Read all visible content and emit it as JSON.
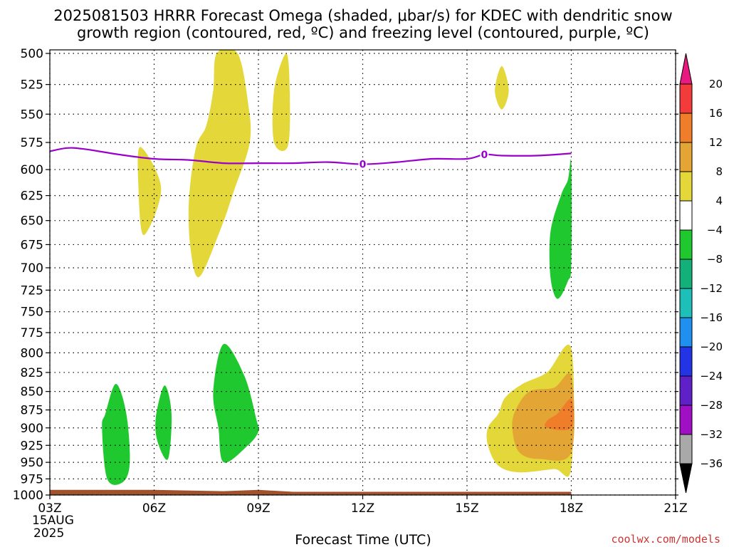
{
  "chart_data": {
    "type": "contour",
    "title_line1": "2025081503 HRRR Forecast Omega (shaded, μbar/s) for KDEC with dendritic snow",
    "title_line2": "growth region (contoured, red, ºC) and freezing level (contoured, purple, ºC)",
    "xlabel": "Forecast Time (UTC)",
    "x_ticks": [
      "03Z",
      "06Z",
      "09Z",
      "12Z",
      "15Z",
      "18Z",
      "21Z"
    ],
    "x_date_lines": [
      "15AUG",
      "2025"
    ],
    "y_ticks": [
      500,
      525,
      550,
      575,
      600,
      625,
      650,
      675,
      700,
      725,
      750,
      775,
      800,
      825,
      850,
      875,
      900,
      925,
      950,
      975,
      1000
    ],
    "y_scale": "log",
    "ylim": [
      500,
      1000
    ],
    "grid": true,
    "colorbar": {
      "labels": [
        "20",
        "16",
        "12",
        "8",
        "4",
        "−4",
        "−8",
        "−12",
        "−16",
        "−20",
        "−24",
        "−28",
        "−32",
        "−36"
      ],
      "colors": [
        "#e8197f",
        "#f43b3b",
        "#ef7d2a",
        "#e3a534",
        "#e4d73a",
        "#ffffff",
        "#1fc82f",
        "#14b07a",
        "#1fbfb9",
        "#1f8ff0",
        "#2334e6",
        "#6020c8",
        "#9f0fc4",
        "#a9a9a9",
        "#000000"
      ]
    },
    "freezing_level": {
      "label": "0",
      "color": "#9900cc",
      "points": [
        [
          0,
          583
        ],
        [
          0.5,
          580
        ],
        [
          1,
          581
        ],
        [
          2,
          586
        ],
        [
          3,
          590
        ],
        [
          4,
          591
        ],
        [
          5,
          594
        ],
        [
          6,
          594
        ],
        [
          7,
          594
        ],
        [
          8,
          593
        ],
        [
          9,
          595
        ],
        [
          10,
          593
        ],
        [
          11,
          590
        ],
        [
          12,
          590
        ],
        [
          12.5,
          586
        ],
        [
          13,
          587
        ],
        [
          14,
          587
        ],
        [
          15,
          585
        ]
      ]
    },
    "omega_regions": [
      {
        "name": "positive-omega-4-8",
        "color": "#e4d73a",
        "points": [
          [
            2.6,
            579
          ],
          [
            3.2,
            618
          ],
          [
            2.7,
            665
          ],
          [
            2.55,
            618
          ]
        ]
      },
      {
        "name": "positive-omega-4-8",
        "color": "#e4d73a",
        "points": [
          [
            4.8,
            500
          ],
          [
            5.4,
            500
          ],
          [
            5.7,
            540
          ],
          [
            5.75,
            575
          ],
          [
            5.3,
            620
          ],
          [
            4.9,
            660
          ],
          [
            4.3,
            710
          ],
          [
            4.05,
            680
          ],
          [
            4.0,
            630
          ],
          [
            4.2,
            580
          ],
          [
            4.5,
            560
          ],
          [
            4.7,
            530
          ]
        ]
      },
      {
        "name": "positive-omega-4-8",
        "color": "#e4d73a",
        "points": [
          [
            6.8,
            500
          ],
          [
            6.9,
            530
          ],
          [
            6.85,
            578
          ],
          [
            6.45,
            575
          ],
          [
            6.45,
            530
          ]
        ]
      },
      {
        "name": "positive-omega-4-8",
        "color": "#e4d73a",
        "points": [
          [
            13.0,
            510
          ],
          [
            13.2,
            530
          ],
          [
            13.0,
            546
          ],
          [
            12.8,
            530
          ]
        ]
      },
      {
        "name": "negative-omega-4-8",
        "color": "#1fc82f",
        "points": [
          [
            1.9,
            840
          ],
          [
            2.2,
            880
          ],
          [
            2.3,
            950
          ],
          [
            2.1,
            980
          ],
          [
            1.65,
            975
          ],
          [
            1.5,
            900
          ],
          [
            1.6,
            880
          ]
        ]
      },
      {
        "name": "negative-omega-4-8",
        "color": "#1fc82f",
        "points": [
          [
            3.3,
            842
          ],
          [
            3.5,
            880
          ],
          [
            3.4,
            945
          ],
          [
            3.1,
            920
          ],
          [
            3.05,
            885
          ]
        ]
      },
      {
        "name": "negative-omega-4-8",
        "color": "#1fc82f",
        "points": [
          [
            5.0,
            789
          ],
          [
            5.6,
            830
          ],
          [
            5.95,
            890
          ],
          [
            6.0,
            905
          ],
          [
            5.7,
            925
          ],
          [
            5.0,
            950
          ],
          [
            4.85,
            900
          ],
          [
            4.7,
            850
          ]
        ]
      },
      {
        "name": "negative-omega-4-8",
        "color": "#1fc82f",
        "points": [
          [
            15.0,
            594
          ],
          [
            14.9,
            610
          ],
          [
            14.7,
            625
          ],
          [
            14.4,
            662
          ],
          [
            14.4,
            710
          ],
          [
            14.6,
            735
          ],
          [
            14.9,
            715
          ],
          [
            15.0,
            695
          ]
        ]
      },
      {
        "name": "positive-omega-4-8",
        "color": "#e4d73a",
        "points": [
          [
            15.0,
            795
          ],
          [
            14.3,
            825
          ],
          [
            13.6,
            840
          ],
          [
            13.1,
            858
          ],
          [
            12.9,
            880
          ],
          [
            12.6,
            900
          ],
          [
            12.6,
            925
          ],
          [
            12.9,
            955
          ],
          [
            13.5,
            965
          ],
          [
            14.5,
            960
          ],
          [
            15.0,
            958
          ]
        ]
      },
      {
        "name": "positive-omega-8-12",
        "color": "#e3a534",
        "points": [
          [
            15.0,
            830
          ],
          [
            14.5,
            845
          ],
          [
            13.8,
            850
          ],
          [
            13.4,
            875
          ],
          [
            13.3,
            900
          ],
          [
            13.5,
            935
          ],
          [
            14.1,
            945
          ],
          [
            15.0,
            935
          ]
        ]
      },
      {
        "name": "positive-omega-12-16",
        "color": "#ef7d2a",
        "points": [
          [
            15.0,
            860
          ],
          [
            14.6,
            880
          ],
          [
            14.3,
            890
          ],
          [
            14.3,
            900
          ],
          [
            15.0,
            900
          ]
        ]
      }
    ],
    "surface": {
      "color": "#a0522d",
      "points": [
        [
          0,
          992
        ],
        [
          3,
          992
        ],
        [
          5,
          994
        ],
        [
          6,
          992
        ],
        [
          7,
          995
        ],
        [
          10,
          995
        ],
        [
          15,
          995
        ]
      ]
    },
    "credit": "coolwx.com/models"
  }
}
